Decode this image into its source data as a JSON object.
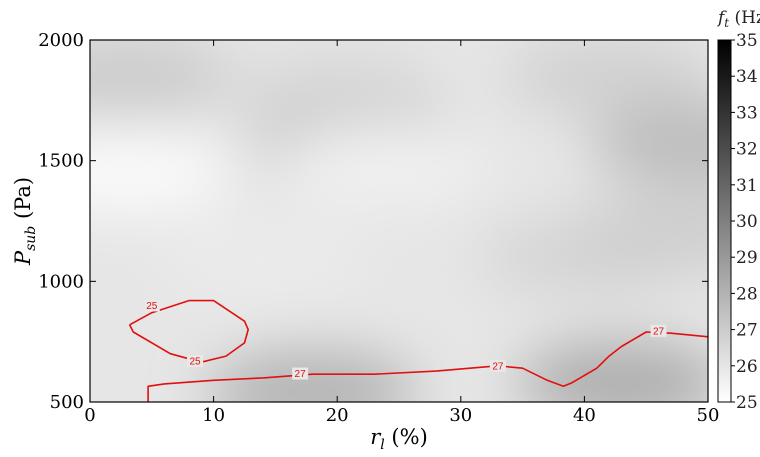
{
  "chart_data": {
    "type": "heatmap",
    "title": "",
    "xlabel": "r_l (%)",
    "ylabel": "P_sub (Pa)",
    "xlim": [
      0,
      50
    ],
    "ylim": [
      500,
      2000
    ],
    "x_ticks": [
      "0",
      "10",
      "20",
      "30",
      "40",
      "50"
    ],
    "y_ticks": [
      "500",
      "1000",
      "1500",
      "2000"
    ],
    "colorbar": {
      "label": "f_t (Hz)",
      "range": [
        25,
        35
      ],
      "ticks": [
        "25",
        "26",
        "27",
        "28",
        "29",
        "30",
        "31",
        "32",
        "33",
        "34",
        "35"
      ],
      "colormap": "gray_r",
      "low_color": "#ffffff",
      "high_color": "#000000"
    },
    "background_field_approx": [
      {
        "x": 3,
        "y": 1850,
        "f": 27.0
      },
      {
        "x": 20,
        "y": 1800,
        "f": 26.4
      },
      {
        "x": 42,
        "y": 1850,
        "f": 26.8
      },
      {
        "x": 21,
        "y": 1620,
        "f": 27.0
      },
      {
        "x": 49,
        "y": 1570,
        "f": 27.6
      },
      {
        "x": 3,
        "y": 1450,
        "f": 25.2
      },
      {
        "x": 24,
        "y": 1480,
        "f": 25.6
      },
      {
        "x": 14,
        "y": 1100,
        "f": 25.8
      },
      {
        "x": 40,
        "y": 1100,
        "f": 26.6
      },
      {
        "x": 47,
        "y": 1200,
        "f": 26.9
      },
      {
        "x": 18,
        "y": 540,
        "f": 28.0
      },
      {
        "x": 43,
        "y": 580,
        "f": 28.2
      }
    ],
    "contours": [
      {
        "level": 25,
        "color": "#e01010",
        "points": [
          [
            3.2,
            820
          ],
          [
            5,
            870
          ],
          [
            8,
            920
          ],
          [
            10,
            920
          ],
          [
            12.5,
            835
          ],
          [
            12.8,
            800
          ],
          [
            12.5,
            745
          ],
          [
            11,
            690
          ],
          [
            9,
            665
          ],
          [
            6.5,
            700
          ],
          [
            3.5,
            790
          ],
          [
            3.2,
            820
          ]
        ],
        "labels": [
          {
            "x": 5,
            "y": 900,
            "text": "25"
          },
          {
            "x": 8.5,
            "y": 670,
            "text": "25"
          }
        ]
      },
      {
        "level": 27,
        "color": "#e01010",
        "points": [
          [
            4.7,
            500
          ],
          [
            4.7,
            565
          ],
          [
            6,
            575
          ],
          [
            10,
            590
          ],
          [
            14,
            600
          ],
          [
            18,
            615
          ],
          [
            23,
            615
          ],
          [
            28,
            628
          ],
          [
            33,
            650
          ],
          [
            35,
            640
          ],
          [
            37,
            590
          ],
          [
            38.3,
            565
          ],
          [
            39,
            580
          ],
          [
            41,
            640
          ],
          [
            42,
            690
          ],
          [
            43,
            730
          ],
          [
            45,
            790
          ],
          [
            47,
            785
          ],
          [
            49,
            775
          ],
          [
            50,
            770
          ]
        ],
        "labels": [
          {
            "x": 17,
            "y": 618,
            "text": "27"
          },
          {
            "x": 33,
            "y": 650,
            "text": "27"
          },
          {
            "x": 46,
            "y": 795,
            "text": "27"
          }
        ]
      }
    ]
  }
}
